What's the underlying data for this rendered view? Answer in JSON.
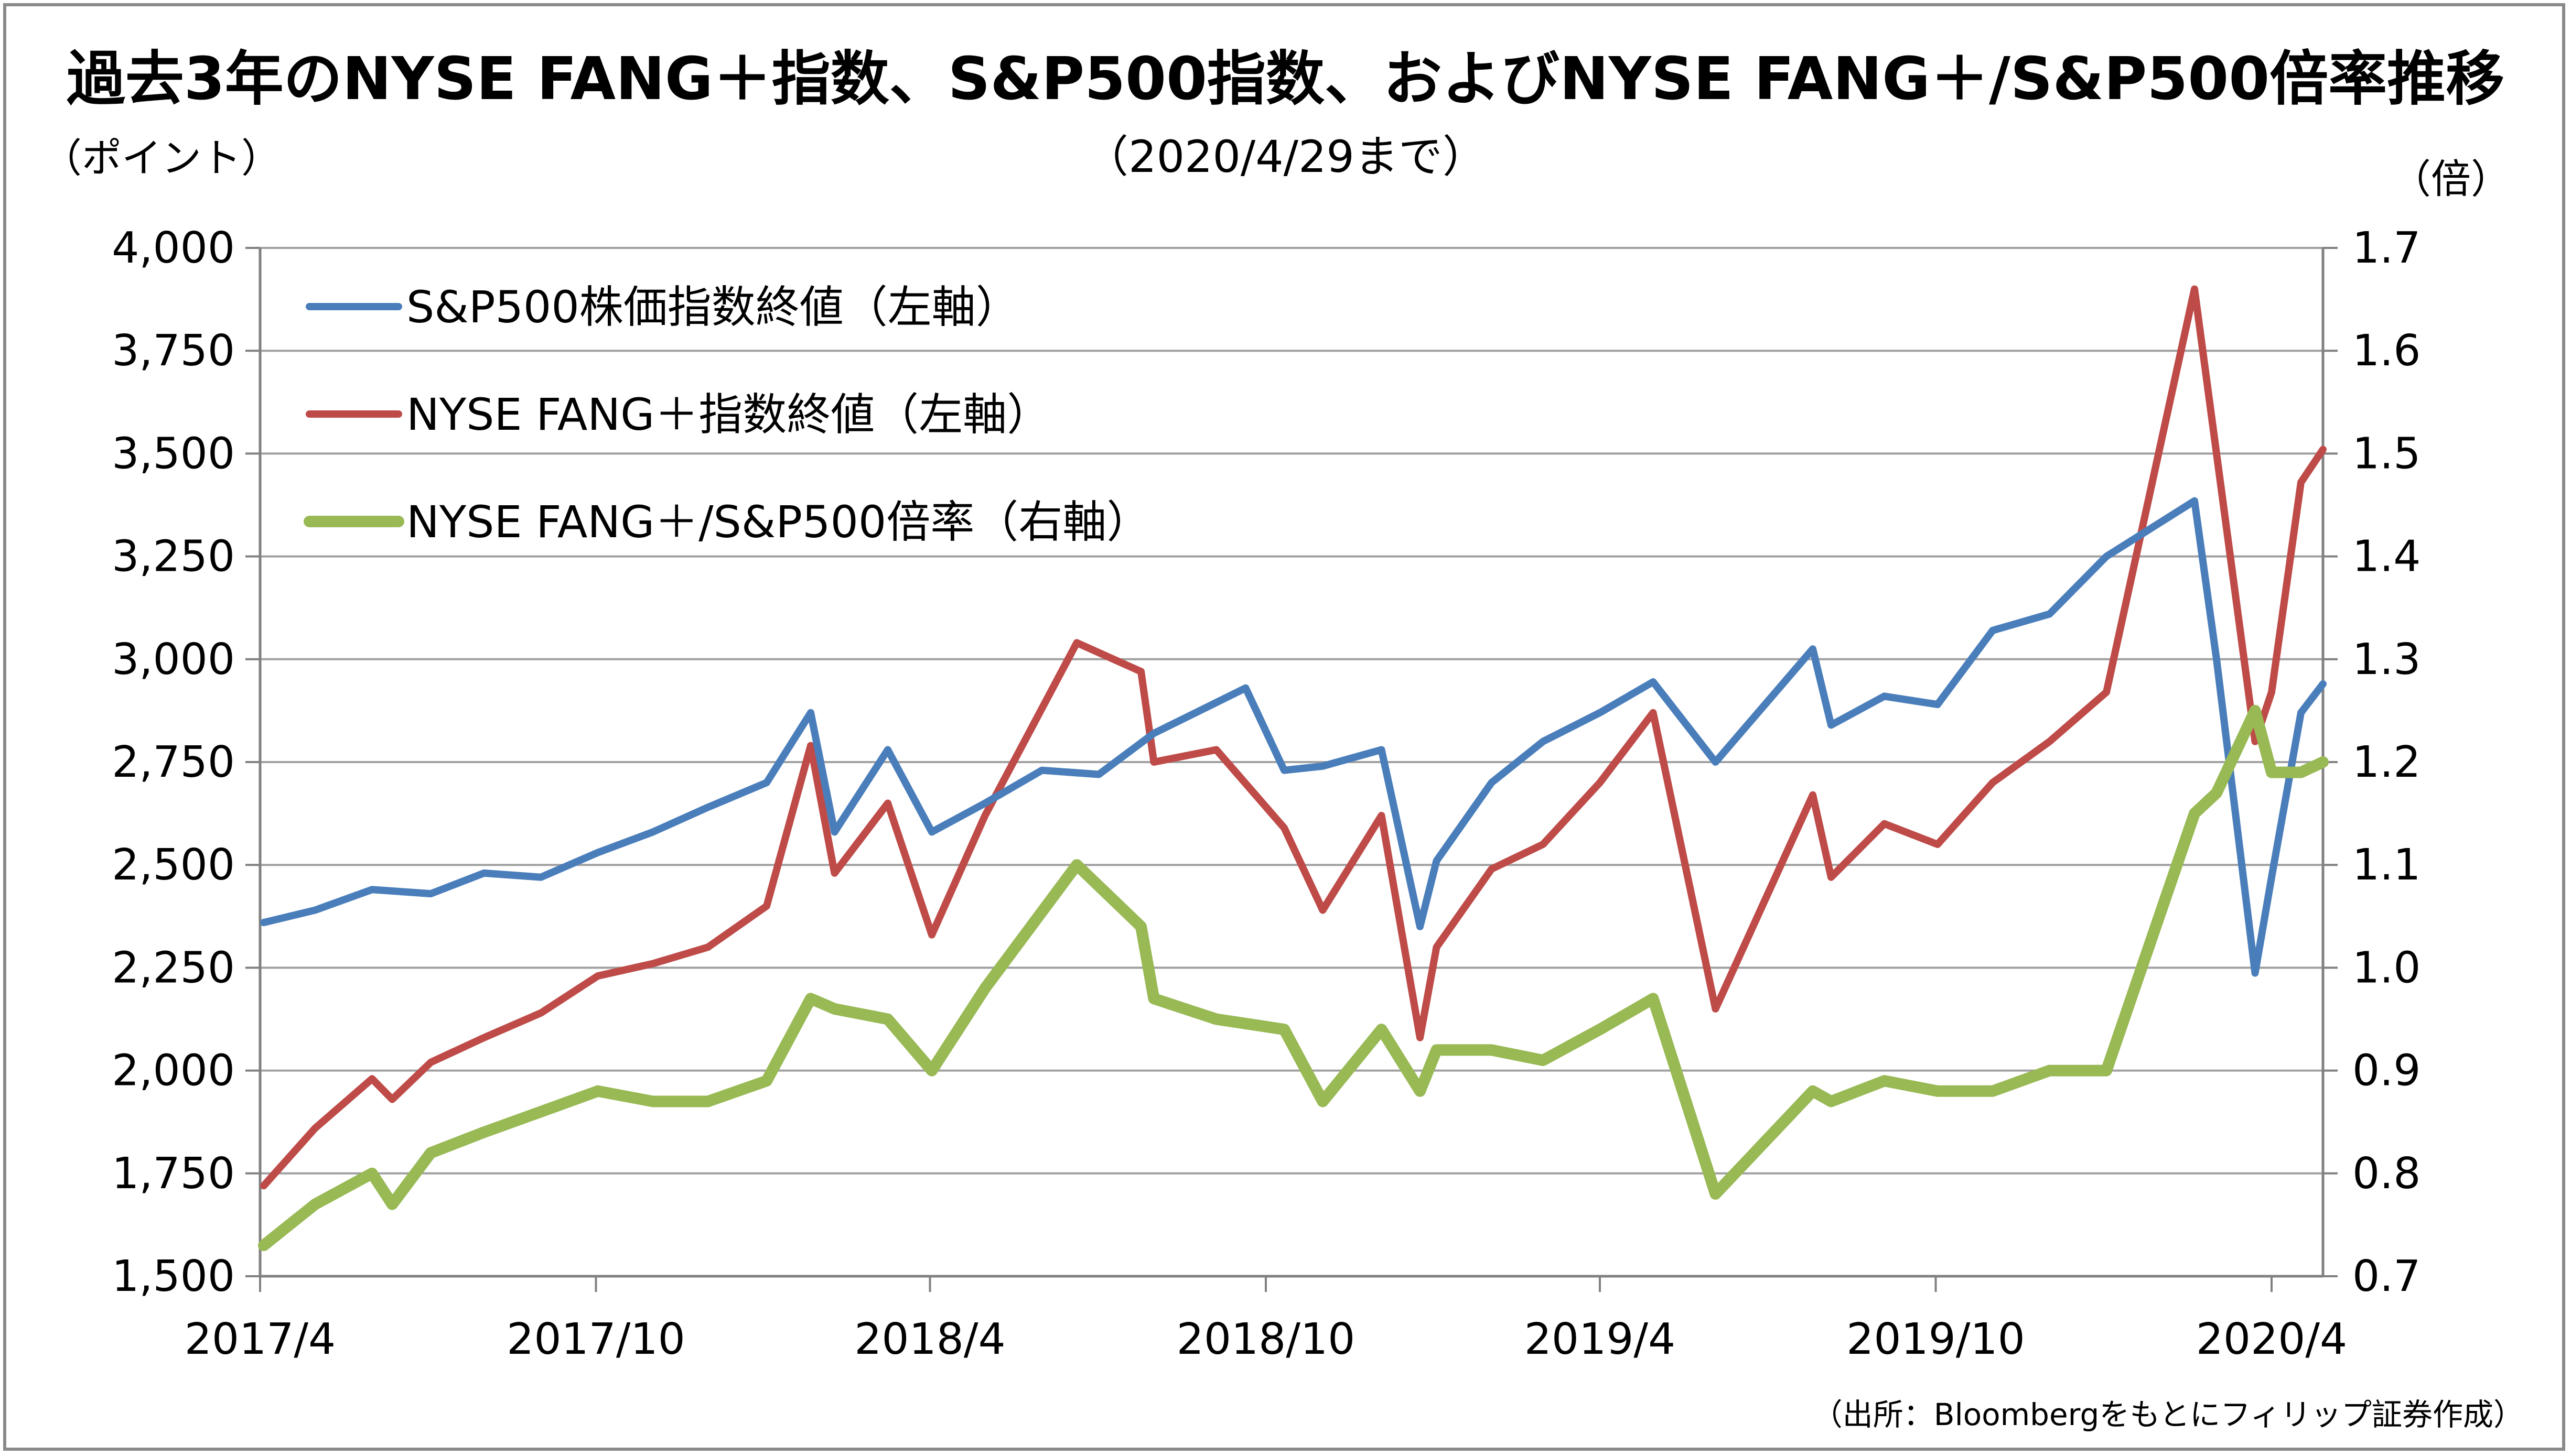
{
  "title": "過去3年のNYSE FANG＋指数、S&P500指数、およびNYSE FANG＋/S&P500倍率推移",
  "subtitle": "（2020/4/29まで）",
  "left_unit": "（ポイント）",
  "right_unit": "（倍）",
  "source": "（出所：Bloombergをもとにフィリップ証券作成）",
  "colors": {
    "sp500": "#4a7ebb",
    "fang": "#be4b48",
    "ratio": "#98b954",
    "grid": "#a0a0a0",
    "axis": "#808080"
  },
  "chart_data": {
    "type": "line",
    "title": "過去3年のNYSE FANG＋指数、S&P500指数、およびNYSE FANG＋/S&P500倍率推移",
    "subtitle": "（2020/4/29まで）",
    "x_tick_labels": [
      "2017/4",
      "2017/10",
      "2018/4",
      "2018/10",
      "2019/4",
      "2019/10",
      "2020/4"
    ],
    "x_range": [
      "2017-04-01",
      "2020-04-29"
    ],
    "y_left": {
      "label": "（ポイント）",
      "ylim": [
        1500,
        4000
      ],
      "ticks": [
        1500,
        1750,
        2000,
        2250,
        2500,
        2750,
        3000,
        3250,
        3500,
        3750,
        4000
      ],
      "tick_labels": [
        "1,500",
        "1,750",
        "2,000",
        "2,250",
        "2,500",
        "2,750",
        "3,000",
        "3,250",
        "3,500",
        "3,750",
        "4,000"
      ]
    },
    "y_right": {
      "label": "（倍）",
      "ylim": [
        0.7,
        1.7
      ],
      "ticks": [
        0.7,
        0.8,
        0.9,
        1.0,
        1.1,
        1.2,
        1.3,
        1.4,
        1.5,
        1.6,
        1.7
      ],
      "tick_labels": [
        "0.7",
        "0.8",
        "0.9",
        "1.0",
        "1.1",
        "1.2",
        "1.3",
        "1.4",
        "1.5",
        "1.6",
        "1.7"
      ]
    },
    "grid": "horizontal",
    "legend_position": "top-left",
    "series": [
      {
        "name": "S&P500株価指数終値（左軸）",
        "axis": "left",
        "color": "#4a7ebb",
        "x": [
          "2017-04-03",
          "2017-05-01",
          "2017-06-01",
          "2017-07-03",
          "2017-08-01",
          "2017-09-01",
          "2017-10-02",
          "2017-11-01",
          "2017-12-01",
          "2018-01-02",
          "2018-01-26",
          "2018-02-08",
          "2018-03-09",
          "2018-04-02",
          "2018-05-01",
          "2018-06-01",
          "2018-07-02",
          "2018-08-01",
          "2018-09-20",
          "2018-10-11",
          "2018-11-01",
          "2018-12-03",
          "2018-12-24",
          "2019-01-02",
          "2019-02-01",
          "2019-03-01",
          "2019-04-01",
          "2019-04-30",
          "2019-06-03",
          "2019-07-26",
          "2019-08-05",
          "2019-09-03",
          "2019-10-02",
          "2019-11-01",
          "2019-12-02",
          "2020-01-02",
          "2020-02-19",
          "2020-03-02",
          "2020-03-23",
          "2020-04-01",
          "2020-04-17",
          "2020-04-29"
        ],
        "values": [
          2360,
          2390,
          2440,
          2430,
          2480,
          2470,
          2530,
          2580,
          2640,
          2700,
          2870,
          2580,
          2780,
          2580,
          2650,
          2730,
          2720,
          2820,
          2930,
          2730,
          2740,
          2780,
          2350,
          2510,
          2700,
          2800,
          2870,
          2945,
          2750,
          3025,
          2840,
          2910,
          2890,
          3070,
          3110,
          3250,
          3385,
          3000,
          2237,
          2470,
          2870,
          2940
        ]
      },
      {
        "name": "NYSE FANG＋指数終値（左軸）",
        "axis": "left",
        "color": "#be4b48",
        "x": [
          "2017-04-03",
          "2017-05-01",
          "2017-06-01",
          "2017-06-12",
          "2017-07-03",
          "2017-08-01",
          "2017-09-01",
          "2017-10-02",
          "2017-11-01",
          "2017-12-01",
          "2018-01-02",
          "2018-01-26",
          "2018-02-08",
          "2018-03-09",
          "2018-04-02",
          "2018-05-01",
          "2018-06-20",
          "2018-07-25",
          "2018-08-01",
          "2018-09-04",
          "2018-10-11",
          "2018-11-01",
          "2018-12-03",
          "2018-12-24",
          "2019-01-02",
          "2019-02-01",
          "2019-03-01",
          "2019-04-01",
          "2019-04-30",
          "2019-06-03",
          "2019-07-26",
          "2019-08-05",
          "2019-09-03",
          "2019-10-02",
          "2019-11-01",
          "2019-12-02",
          "2020-01-02",
          "2020-02-19",
          "2020-03-02",
          "2020-03-23",
          "2020-04-01",
          "2020-04-17",
          "2020-04-29"
        ],
        "values": [
          1720,
          1860,
          1980,
          1930,
          2020,
          2080,
          2140,
          2230,
          2260,
          2300,
          2400,
          2790,
          2480,
          2650,
          2330,
          2620,
          3040,
          2970,
          2750,
          2780,
          2590,
          2390,
          2620,
          2080,
          2300,
          2490,
          2550,
          2700,
          2870,
          2150,
          2670,
          2470,
          2600,
          2550,
          2700,
          2800,
          2920,
          3900,
          3500,
          2800,
          2920,
          3430,
          3510
        ]
      },
      {
        "name": "NYSE FANG＋/S&P500倍率（右軸）",
        "axis": "right",
        "color": "#98b954",
        "x": [
          "2017-04-03",
          "2017-05-01",
          "2017-06-01",
          "2017-06-12",
          "2017-07-03",
          "2017-08-01",
          "2017-09-01",
          "2017-10-02",
          "2017-11-01",
          "2017-12-01",
          "2018-01-02",
          "2018-01-26",
          "2018-02-08",
          "2018-03-09",
          "2018-04-02",
          "2018-05-01",
          "2018-06-20",
          "2018-07-25",
          "2018-08-01",
          "2018-09-04",
          "2018-10-11",
          "2018-11-01",
          "2018-12-03",
          "2018-12-24",
          "2019-01-02",
          "2019-02-01",
          "2019-03-01",
          "2019-04-01",
          "2019-04-30",
          "2019-06-03",
          "2019-07-26",
          "2019-08-05",
          "2019-09-03",
          "2019-10-02",
          "2019-11-01",
          "2019-12-02",
          "2020-01-02",
          "2020-02-19",
          "2020-03-02",
          "2020-03-23",
          "2020-04-01",
          "2020-04-17",
          "2020-04-29"
        ],
        "values": [
          0.73,
          0.77,
          0.8,
          0.77,
          0.82,
          0.84,
          0.86,
          0.88,
          0.87,
          0.87,
          0.89,
          0.97,
          0.96,
          0.95,
          0.9,
          0.98,
          1.1,
          1.04,
          0.97,
          0.95,
          0.94,
          0.87,
          0.94,
          0.88,
          0.92,
          0.92,
          0.91,
          0.94,
          0.97,
          0.78,
          0.88,
          0.87,
          0.89,
          0.88,
          0.88,
          0.9,
          0.9,
          1.15,
          1.17,
          1.25,
          1.19,
          1.19,
          1.2
        ]
      }
    ]
  }
}
